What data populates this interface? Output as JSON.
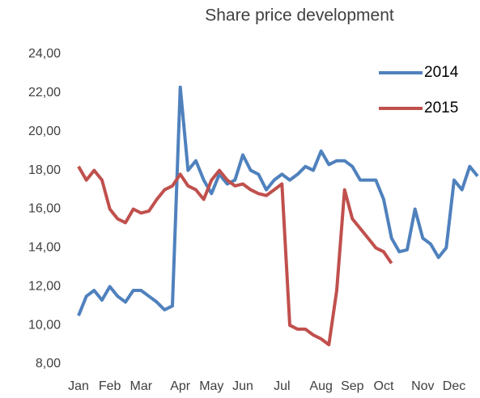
{
  "chart_data": {
    "type": "line",
    "title": "Share price development",
    "categories": [
      "Jan",
      null,
      null,
      null,
      "Feb",
      null,
      null,
      null,
      "Mar",
      null,
      null,
      null,
      null,
      "Apr",
      null,
      null,
      null,
      "May",
      null,
      null,
      null,
      "Jun",
      null,
      null,
      null,
      null,
      "Jul",
      null,
      null,
      null,
      null,
      "Aug",
      null,
      null,
      null,
      "Sep",
      null,
      null,
      null,
      "Oct",
      null,
      null,
      null,
      null,
      "Nov",
      null,
      null,
      null,
      "Dec",
      null,
      null,
      null
    ],
    "series": [
      {
        "name": "2014",
        "color": "#4f81bd",
        "values": [
          10.5,
          11.5,
          11.8,
          11.3,
          12.0,
          11.5,
          11.2,
          11.8,
          11.8,
          11.5,
          11.2,
          10.8,
          11.0,
          22.3,
          18.0,
          18.5,
          17.5,
          16.8,
          17.8,
          17.3,
          17.5,
          18.8,
          18.0,
          17.8,
          17.0,
          17.5,
          17.8,
          17.5,
          17.8,
          18.2,
          18.0,
          19.0,
          18.3,
          18.5,
          18.5,
          18.2,
          17.5,
          17.5,
          17.5,
          16.5,
          14.5,
          13.8,
          13.9,
          16.0,
          14.5,
          14.2,
          13.5,
          14.0,
          17.5,
          17.0,
          18.2,
          17.7
        ]
      },
      {
        "name": "2015",
        "color": "#c0504d",
        "values": [
          18.2,
          17.5,
          18.0,
          17.5,
          16.0,
          15.5,
          15.3,
          16.0,
          15.8,
          15.9,
          16.5,
          17.0,
          17.2,
          17.8,
          17.2,
          17.0,
          16.5,
          17.5,
          18.0,
          17.5,
          17.2,
          17.3,
          17.0,
          16.8,
          16.7,
          17.0,
          17.3,
          10.0,
          9.8,
          9.8,
          9.5,
          9.3,
          9.0,
          11.8,
          17.0,
          15.5,
          15.0,
          14.5,
          14.0,
          13.8,
          13.2,
          null,
          null,
          null,
          null,
          null,
          null,
          null,
          null,
          null,
          null,
          null
        ]
      }
    ],
    "ylim": [
      8,
      24
    ],
    "yticks": [
      {
        "value": 8,
        "label": "8,00"
      },
      {
        "value": 10,
        "label": "10,00"
      },
      {
        "value": 12,
        "label": "12,00"
      },
      {
        "value": 14,
        "label": "14,00"
      },
      {
        "value": 16,
        "label": "16,00"
      },
      {
        "value": 18,
        "label": "18,00"
      },
      {
        "value": 20,
        "label": "20,00"
      },
      {
        "value": 22,
        "label": "22,00"
      },
      {
        "value": 24,
        "label": "24,00"
      }
    ],
    "grid": false,
    "legend": "top-right"
  }
}
